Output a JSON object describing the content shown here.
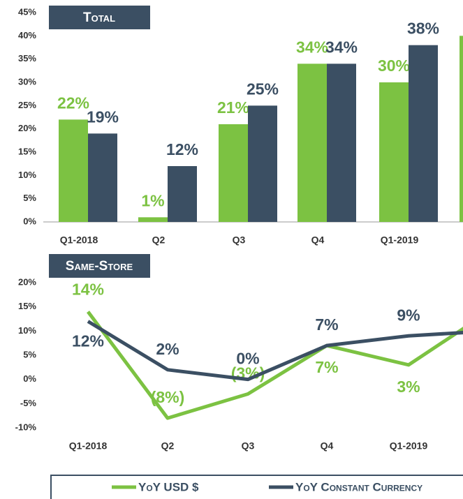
{
  "chart_data": [
    {
      "type": "bar",
      "title": "Total",
      "categories": [
        "Q1-2018",
        "Q2",
        "Q3",
        "Q4",
        "Q1-2019",
        null
      ],
      "series": [
        {
          "name": "YoY USD $",
          "color": "#7cc242",
          "values": [
            22,
            1,
            21,
            34,
            30,
            40
          ],
          "value_labels": [
            "22%",
            "1%",
            "21%",
            "34%",
            "30%",
            null
          ]
        },
        {
          "name": "YoY Constant Currency",
          "color": "#3b4f63",
          "values": [
            19,
            12,
            25,
            34,
            38,
            null
          ],
          "value_labels": [
            "19%",
            "12%",
            "25%",
            "34%",
            "38%",
            null
          ]
        }
      ],
      "ylim": [
        0,
        45
      ],
      "yticks": [
        {
          "value": 0,
          "label": "0%"
        },
        {
          "value": 5,
          "label": "5%"
        },
        {
          "value": 10,
          "label": "10%"
        },
        {
          "value": 15,
          "label": "15%"
        },
        {
          "value": 20,
          "label": "20%"
        },
        {
          "value": 25,
          "label": "25%"
        },
        {
          "value": 30,
          "label": "30%"
        },
        {
          "value": 35,
          "label": "35%"
        },
        {
          "value": 40,
          "label": "40%"
        },
        {
          "value": 45,
          "label": "45%"
        }
      ]
    },
    {
      "type": "line",
      "title": "Same-Store",
      "categories": [
        "Q1-2018",
        "Q2",
        "Q3",
        "Q4",
        "Q1-2019",
        null
      ],
      "series": [
        {
          "name": "YoY USD $",
          "color": "#7cc242",
          "values": [
            14,
            -8,
            -3,
            7,
            3,
            14
          ],
          "value_labels": [
            "14%",
            "(8%)",
            "(3%)",
            "7%",
            "3%",
            null
          ]
        },
        {
          "name": "YoY Constant Currency",
          "color": "#3b4f63",
          "values": [
            12,
            2,
            0,
            7,
            9,
            10
          ],
          "value_labels": [
            "12%",
            "2%",
            "0%",
            "7%",
            "9%",
            null
          ]
        }
      ],
      "ylim": [
        -10,
        20
      ],
      "yticks": [
        {
          "value": -10,
          "label": "-10%"
        },
        {
          "value": -5,
          "label": "-5%"
        },
        {
          "value": 0,
          "label": "0%"
        },
        {
          "value": 5,
          "label": "5%"
        },
        {
          "value": 10,
          "label": "10%"
        },
        {
          "value": 15,
          "label": "15%"
        },
        {
          "value": 20,
          "label": "20%"
        }
      ],
      "legend": "bottom"
    }
  ]
}
